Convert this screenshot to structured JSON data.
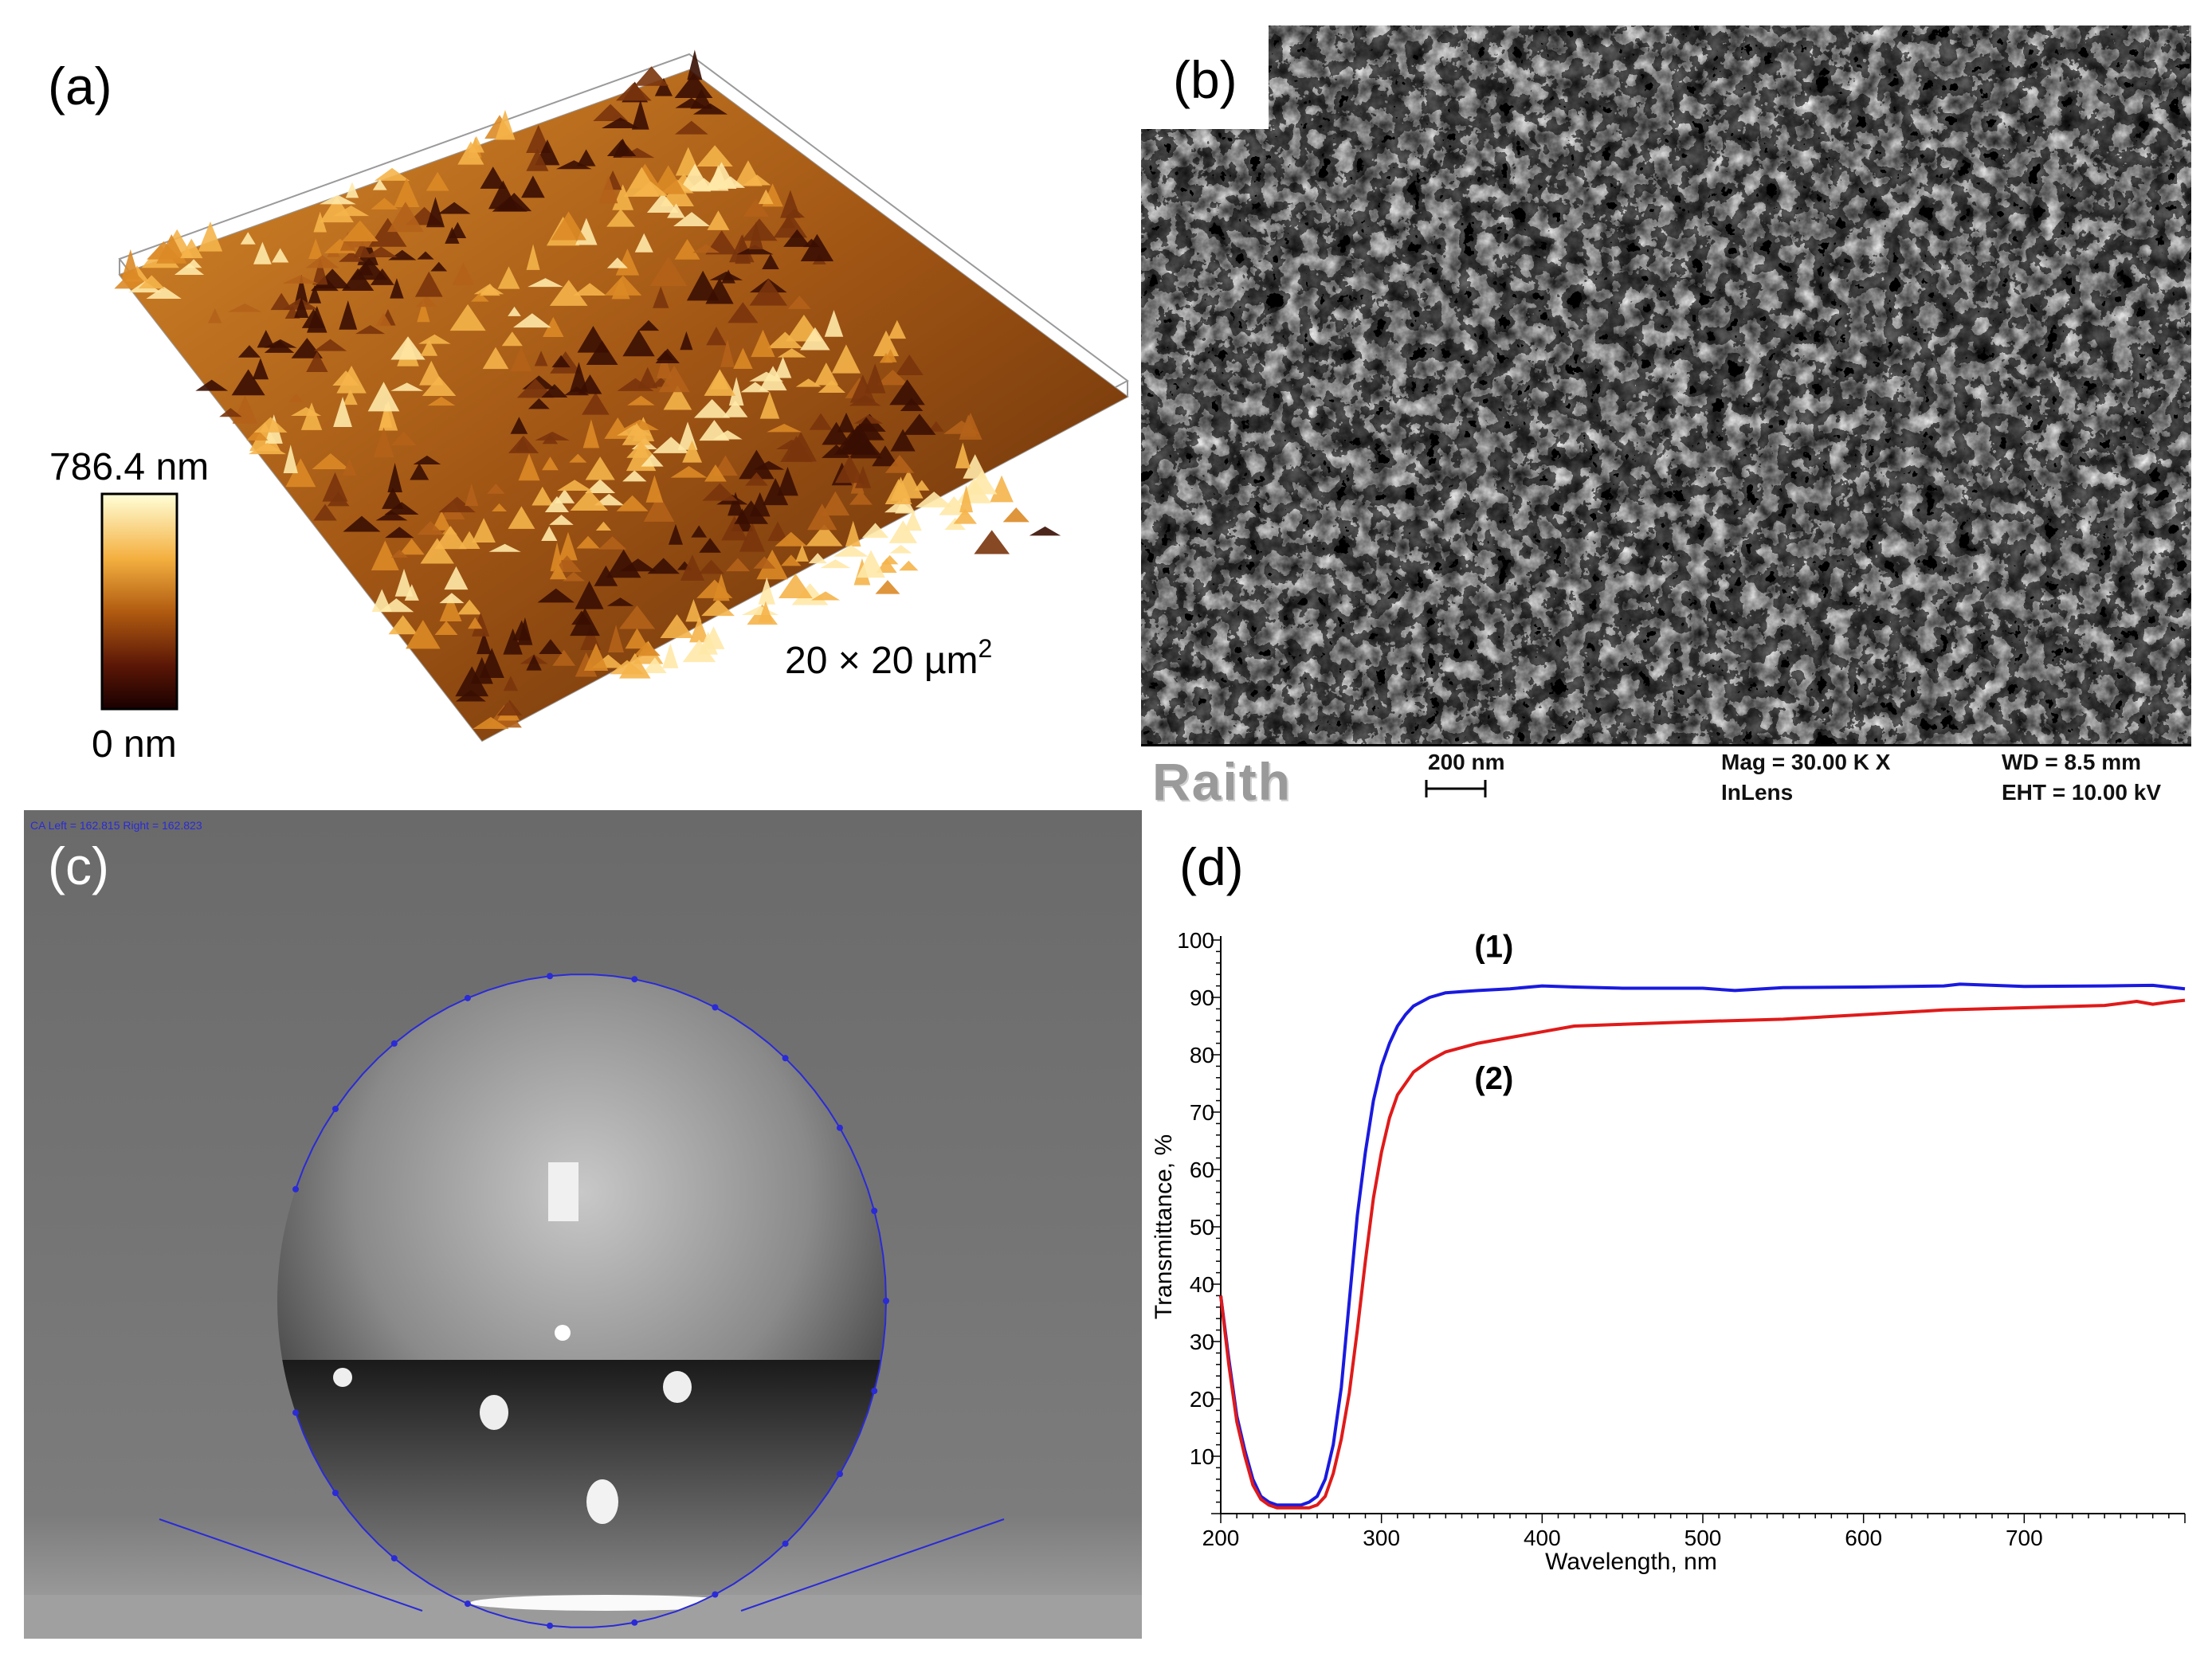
{
  "panels": {
    "a": {
      "label": "(a)",
      "colorbar_max": "786.4 nm",
      "colorbar_min": "0 nm",
      "scan_area": "20 × 20 µm",
      "scan_area_sup": "2",
      "colormap": [
        "#ffffd8",
        "#f4b040",
        "#b05a10",
        "#5a1606",
        "#1a0000"
      ]
    },
    "b": {
      "label": "(b)",
      "logo": "Raith",
      "scale_label": "200 nm",
      "mag": "Mag =   30.00 K X",
      "detector": "InLens",
      "wd": "WD =  8.5 mm",
      "eht": "EHT = 10.00 kV"
    },
    "c": {
      "label": "(c)",
      "header_text": "CA Left = 162.815 Right = 162.823",
      "fit_color": "#2a2ad8"
    },
    "d": {
      "label": "(d)"
    }
  },
  "chart_data": {
    "type": "line",
    "xlabel": "Wavelength, nm",
    "ylabel": "Transmittance, %",
    "xlim": [
      200,
      800
    ],
    "ylim": [
      0,
      100
    ],
    "xticks": [
      200,
      300,
      400,
      500,
      600,
      700
    ],
    "yticks": [
      10,
      20,
      30,
      40,
      50,
      60,
      70,
      80,
      90,
      100
    ],
    "grid": false,
    "series": [
      {
        "name": "(1)",
        "color": "#1a1ae0",
        "x": [
          200,
          205,
          210,
          215,
          220,
          225,
          230,
          235,
          240,
          245,
          250,
          255,
          260,
          265,
          270,
          275,
          280,
          285,
          290,
          295,
          300,
          305,
          310,
          315,
          320,
          330,
          340,
          350,
          360,
          380,
          400,
          420,
          450,
          500,
          520,
          550,
          600,
          650,
          660,
          700,
          750,
          780,
          800
        ],
        "y": [
          38,
          27,
          17,
          11,
          6,
          3,
          2,
          1.5,
          1.5,
          1.5,
          1.5,
          2,
          3,
          6,
          12,
          22,
          37,
          52,
          63,
          72,
          78,
          82,
          85,
          87,
          88.5,
          90,
          90.8,
          91,
          91.2,
          91.5,
          92,
          91.8,
          91.6,
          91.6,
          91.2,
          91.7,
          91.8,
          92,
          92.3,
          91.9,
          92,
          92.1,
          91.5
        ]
      },
      {
        "name": "(2)",
        "color": "#e01a1a",
        "x": [
          200,
          205,
          210,
          215,
          220,
          225,
          230,
          235,
          240,
          245,
          250,
          255,
          260,
          265,
          270,
          275,
          280,
          285,
          290,
          295,
          300,
          305,
          310,
          320,
          330,
          340,
          360,
          380,
          400,
          420,
          450,
          500,
          550,
          600,
          650,
          700,
          750,
          770,
          780,
          790,
          800
        ],
        "y": [
          38,
          26,
          16,
          10,
          5,
          2.5,
          1.5,
          1,
          1,
          1,
          1,
          1,
          1.5,
          3,
          7,
          13,
          21,
          32,
          44,
          55,
          63,
          69,
          73,
          77,
          79,
          80.5,
          82,
          83,
          84,
          85,
          85.3,
          85.8,
          86.2,
          87,
          87.8,
          88.2,
          88.6,
          89.3,
          88.8,
          89.2,
          89.5
        ]
      }
    ]
  }
}
